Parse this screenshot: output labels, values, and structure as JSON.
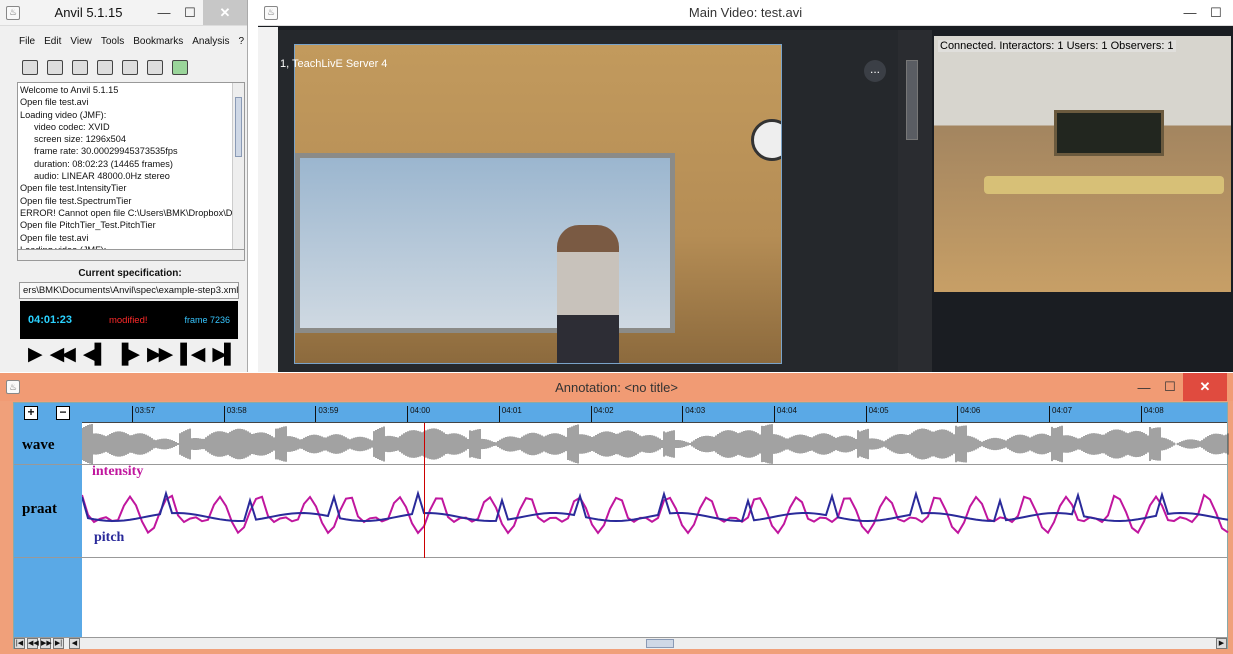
{
  "anvil": {
    "title": "Anvil 5.1.15",
    "menu": [
      "File",
      "Edit",
      "View",
      "Tools",
      "Bookmarks",
      "Analysis",
      "?"
    ],
    "toolbar_icons": [
      "open-folder-icon",
      "save-icon",
      "new-file-icon",
      "gear-icon",
      "binoculars-icon",
      "monitor-icon",
      "plugin-icon"
    ],
    "log_lines": [
      {
        "text": "Welcome to Anvil 5.1.15",
        "indent": false
      },
      {
        "text": "Open file test.avi",
        "indent": false
      },
      {
        "text": "Loading video (JMF):",
        "indent": false
      },
      {
        "text": "video codec: XVID",
        "indent": true
      },
      {
        "text": "screen size: 1296x504",
        "indent": true
      },
      {
        "text": "frame rate: 30.00029945373535fps",
        "indent": true
      },
      {
        "text": "duration: 08:02:23 (14465 frames)",
        "indent": true
      },
      {
        "text": "audio: LINEAR 48000.0Hz stereo",
        "indent": true
      },
      {
        "text": "Open file test.IntensityTier",
        "indent": false
      },
      {
        "text": "Open file test.SpectrumTier",
        "indent": false
      },
      {
        "text": "ERROR! Cannot open file C:\\Users\\BMK\\Dropbox\\D",
        "indent": false
      },
      {
        "text": "Open file PitchTier_Test.PitchTier",
        "indent": false
      },
      {
        "text": "Open file test.avi",
        "indent": false
      },
      {
        "text": "Loading video (JMF):",
        "indent": false
      }
    ],
    "spec_label": "Current specification:",
    "spec_path": "ers\\BMK\\Documents\\Anvil\\spec\\example-step3.xml",
    "time": "04:01:23",
    "modified": "modified!",
    "frame": "frame 7236",
    "transport": [
      "▶",
      "◀◀",
      "◀▌",
      "▐▶",
      "▶▶",
      "▌◀",
      "▶▌"
    ]
  },
  "main_video": {
    "title": "Main Video: test.avi",
    "label": "1, TeachLivE Server 4",
    "more": "...",
    "status": "Connected.  Interactors: 1  Users: 1  Observers: 1"
  },
  "annotation": {
    "title": "Annotation: <no title>",
    "plus": "+",
    "minus": "−",
    "ticks": [
      "03:57",
      "03:58",
      "03:59",
      "04:00",
      "04:01",
      "04:02",
      "04:03",
      "04:04",
      "04:05",
      "04:06",
      "04:07",
      "04:08"
    ],
    "track_wave": "wave",
    "track_praat": "praat",
    "intensity_label": "intensity",
    "pitch_label": "pitch",
    "intensity_color": "#c0169e",
    "pitch_color": "#2a2a9a"
  }
}
